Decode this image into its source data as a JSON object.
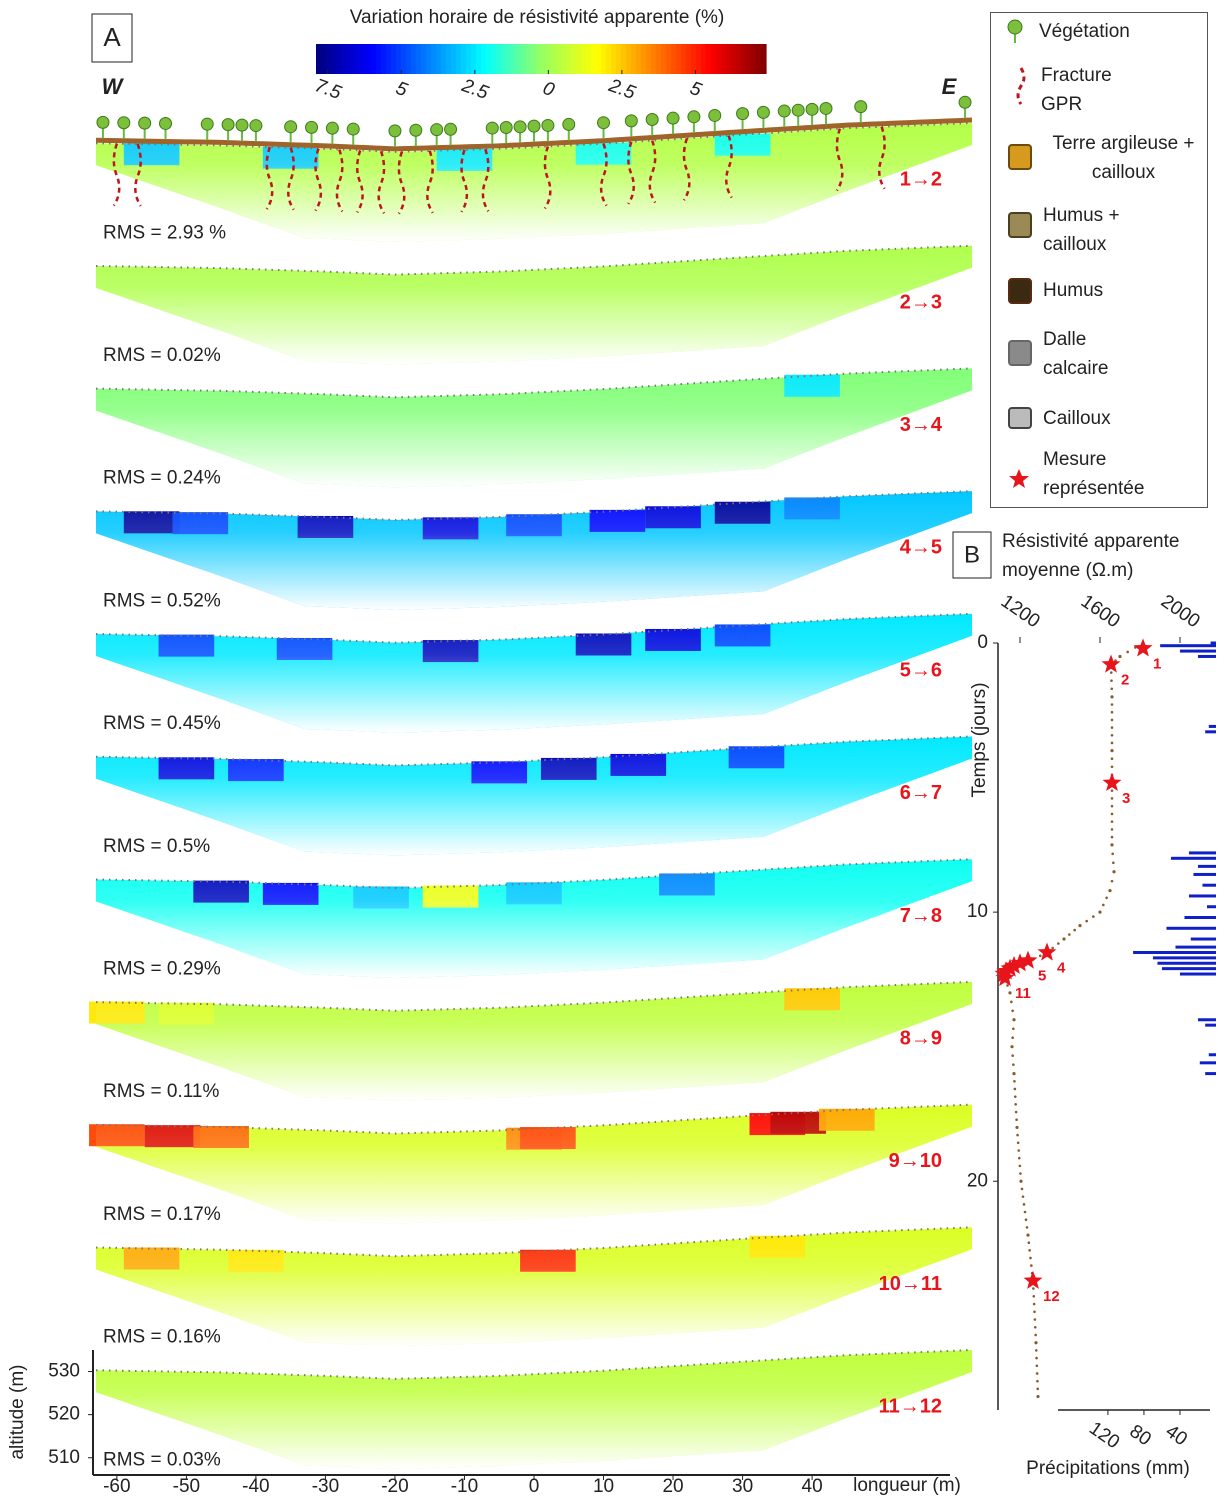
{
  "chart_data": [
    {
      "type": "sections",
      "label": "A",
      "title": "Variation horaire de résistivité apparente (%)",
      "colormap": "jet",
      "clim": [
        -7.9,
        7.4
      ],
      "cticks": [
        {
          "value": -7.5,
          "label": "7.5"
        },
        {
          "value": -5,
          "label": "5"
        },
        {
          "value": -2.5,
          "label": "2.5"
        },
        0,
        2.5,
        5
      ],
      "west": "W",
      "east": "E",
      "xlabel": "longueur (m)",
      "ylabel": "altitude (m)",
      "xlim": [
        -63,
        63
      ],
      "xticks": [
        -60,
        -50,
        -40,
        -30,
        -20,
        -10,
        0,
        10,
        20,
        30,
        40
      ],
      "ylim": [
        506,
        535
      ],
      "yticks": [
        510,
        520,
        530
      ],
      "surface": {
        "x": [
          -63,
          -45,
          -30,
          -20,
          -5,
          10,
          30,
          45,
          63
        ],
        "altitude": [
          530.3,
          529.8,
          529,
          528.3,
          529,
          530.2,
          532.3,
          533.8,
          535
        ]
      },
      "profiles": [
        {
          "name": "1→2",
          "rms": "RMS = 2.93 %",
          "base": 0.3,
          "anomalies": [
            {
              "x": -55,
              "value": -3
            },
            {
              "x": -35,
              "value": -3
            },
            {
              "x": -10,
              "value": -2.5
            },
            {
              "x": 10,
              "value": -2
            },
            {
              "x": 30,
              "value": -2
            }
          ]
        },
        {
          "name": "2→3",
          "rms": "RMS = 0.02%",
          "base": 0.2,
          "anomalies": []
        },
        {
          "name": "3→4",
          "rms": "RMS = 0.24%",
          "base": -0.5,
          "anomalies": [
            {
              "x": 40,
              "value": -2.5
            }
          ]
        },
        {
          "name": "4→5",
          "rms": "RMS = 0.52%",
          "base": -3,
          "anomalies": [
            {
              "x": -55,
              "value": -7.5
            },
            {
              "x": -48,
              "value": -5
            },
            {
              "x": -30,
              "value": -7
            },
            {
              "x": -12,
              "value": -6.5
            },
            {
              "x": 0,
              "value": -5
            },
            {
              "x": 12,
              "value": -6
            },
            {
              "x": 20,
              "value": -6.5
            },
            {
              "x": 30,
              "value": -7.5
            },
            {
              "x": 40,
              "value": -4
            }
          ]
        },
        {
          "name": "5→6",
          "rms": "RMS = 0.45%",
          "base": -2.5,
          "anomalies": [
            {
              "x": -50,
              "value": -5
            },
            {
              "x": -33,
              "value": -5
            },
            {
              "x": -12,
              "value": -7
            },
            {
              "x": 10,
              "value": -7
            },
            {
              "x": 20,
              "value": -6.5
            },
            {
              "x": 30,
              "value": -5
            }
          ]
        },
        {
          "name": "6→7",
          "rms": "RMS = 0.5%",
          "base": -2.5,
          "anomalies": [
            {
              "x": -50,
              "value": -6.5
            },
            {
              "x": -40,
              "value": -5.5
            },
            {
              "x": -5,
              "value": -6
            },
            {
              "x": 5,
              "value": -7
            },
            {
              "x": 15,
              "value": -6.5
            },
            {
              "x": 32,
              "value": -5
            }
          ]
        },
        {
          "name": "7→8",
          "rms": "RMS = 0.29%",
          "base": -2,
          "anomalies": [
            {
              "x": -45,
              "value": -7
            },
            {
              "x": -35,
              "value": -6
            },
            {
              "x": -22,
              "value": -3
            },
            {
              "x": -12,
              "value": 1.5
            },
            {
              "x": 0,
              "value": -3
            },
            {
              "x": 22,
              "value": -4
            }
          ]
        },
        {
          "name": "8→9",
          "rms": "RMS = 0.11%",
          "base": 0.5,
          "anomalies": [
            {
              "x": -60,
              "value": 2
            },
            {
              "x": -50,
              "value": 1
            },
            {
              "x": 40,
              "value": 2.5
            }
          ]
        },
        {
          "name": "9→10",
          "rms": "RMS = 0.17%",
          "base": 1,
          "anomalies": [
            {
              "x": -60,
              "value": 4.5
            },
            {
              "x": -52,
              "value": 6
            },
            {
              "x": -45,
              "value": 4
            },
            {
              "x": 0,
              "value": 3.5
            },
            {
              "x": 2,
              "value": 4.5
            },
            {
              "x": 35,
              "value": 5.5
            },
            {
              "x": 38,
              "value": 6.5
            },
            {
              "x": 45,
              "value": 3
            }
          ]
        },
        {
          "name": "10→11",
          "rms": "RMS = 0.16%",
          "base": 1,
          "anomalies": [
            {
              "x": -55,
              "value": 3
            },
            {
              "x": -40,
              "value": 2
            },
            {
              "x": 2,
              "value": 5
            },
            {
              "x": 35,
              "value": 2
            }
          ]
        },
        {
          "name": "11→12",
          "rms": "RMS = 0.03%",
          "base": 0.5,
          "anomalies": []
        }
      ],
      "legend": [
        "Végétation",
        "Fracture GPR",
        "Terre argileuse + cailloux",
        "Humus + cailloux",
        "Humus",
        "Dalle calcaire",
        "Cailloux",
        "Mesure représentée"
      ]
    },
    {
      "type": "scatter",
      "label": "B",
      "title": "Résistivité apparente moyenne (Ω.m)",
      "ylabel": "Temps (jours)",
      "xlabel": "Précipitations (mm)",
      "xlim": [
        1090,
        2150
      ],
      "xticks": [
        1200,
        1600,
        2000
      ],
      "ylim": [
        0,
        28.5
      ],
      "yticks": [
        0,
        10,
        20
      ],
      "plim": [
        242,
        0
      ],
      "pticks": [
        120,
        80,
        40
      ],
      "curve": {
        "color": "#8b5a2b",
        "days": [
          0,
          0.5,
          0.8,
          2,
          4,
          5.2,
          7.5,
          8.5,
          9.2,
          10,
          10.5,
          11,
          11.5,
          12,
          12.45,
          13,
          14,
          15,
          16,
          18,
          20,
          22,
          23.7,
          26,
          28
        ],
        "values": [
          1815,
          1700,
          1655,
          1660,
          1660,
          1660,
          1660,
          1670,
          1650,
          1600,
          1500,
          1420,
          1335,
          1200,
          1125,
          1150,
          1170,
          1160,
          1170,
          1185,
          1205,
          1240,
          1265,
          1280,
          1290
        ]
      },
      "stars": {
        "color": "#e8141c",
        "labels": [
          "1",
          "2",
          "3",
          "4",
          "5",
          null,
          null,
          null,
          null,
          null,
          "11",
          "12"
        ],
        "days": [
          0.2,
          0.8,
          5.2,
          11.5,
          11.8,
          11.9,
          12.0,
          12.1,
          12.2,
          12.3,
          12.45,
          23.7
        ],
        "values": [
          1815,
          1655,
          1660,
          1335,
          1240,
          1200,
          1170,
          1150,
          1130,
          1120,
          1125,
          1265
        ]
      },
      "rain": {
        "color": "#1020c8",
        "days": [
          0,
          0.1,
          0.3,
          0.5,
          3.1,
          3.3,
          7.8,
          8.0,
          8.3,
          8.6,
          9.0,
          9.4,
          9.8,
          10.2,
          10.6,
          11.0,
          11.3,
          11.5,
          11.7,
          11.9,
          12.1,
          12.3,
          14.0,
          14.2,
          15.3,
          15.6,
          16.0
        ],
        "values": [
          6,
          62,
          40,
          20,
          8,
          12,
          30,
          50,
          20,
          25,
          15,
          30,
          10,
          35,
          55,
          28,
          45,
          92,
          70,
          65,
          60,
          40,
          20,
          12,
          8,
          18,
          12
        ]
      }
    }
  ]
}
